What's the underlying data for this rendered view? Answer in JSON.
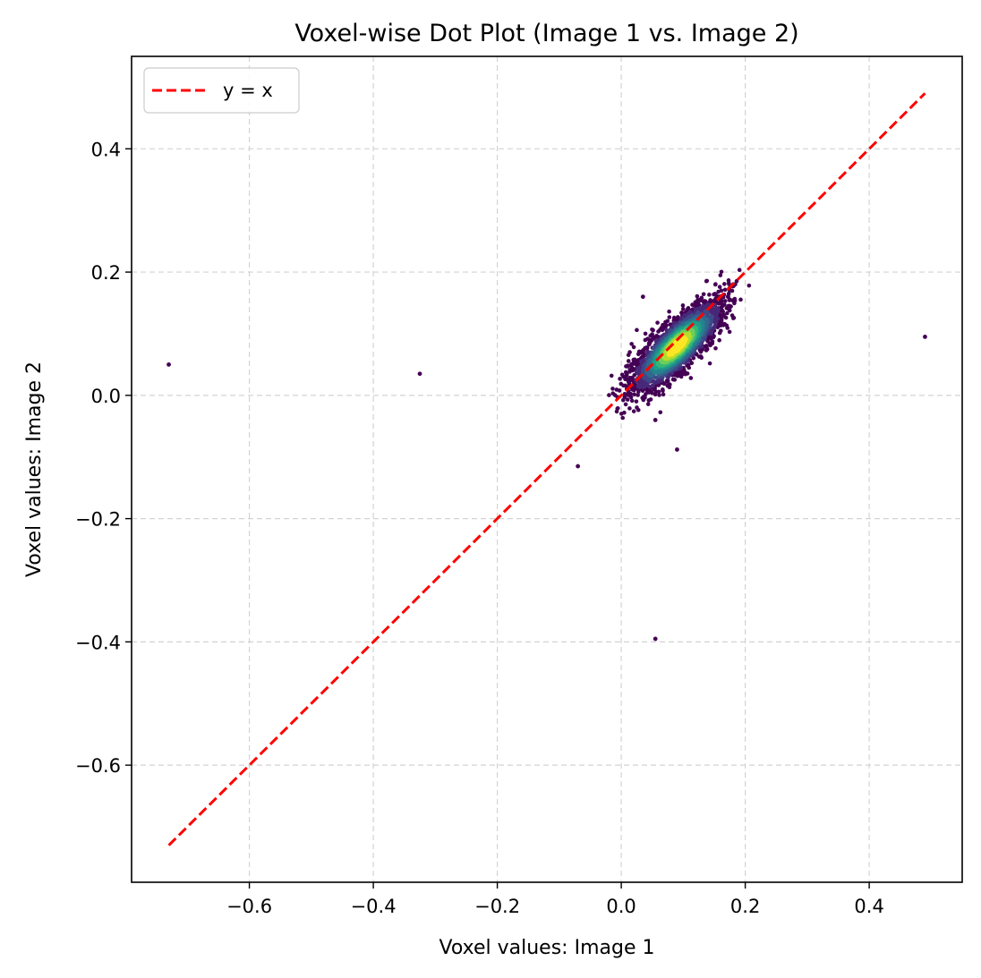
{
  "chart_data": {
    "type": "scatter",
    "title": "Voxel-wise Dot Plot (Image 1 vs. Image 2)",
    "xlabel": "Voxel values: Image 1",
    "ylabel": "Voxel values: Image 2",
    "xlim": [
      -0.79,
      0.55
    ],
    "ylim": [
      -0.79,
      0.55
    ],
    "xticks": [
      -0.6,
      -0.4,
      -0.2,
      0.0,
      0.2,
      0.4
    ],
    "yticks": [
      -0.6,
      -0.4,
      -0.2,
      0.0,
      0.2,
      0.4
    ],
    "xtick_labels": [
      "−0.6",
      "−0.4",
      "−0.2",
      "0.0",
      "0.2",
      "0.4"
    ],
    "ytick_labels": [
      "−0.6",
      "−0.4",
      "−0.2",
      "0.0",
      "0.2",
      "0.4"
    ],
    "grid": true,
    "legend": {
      "position": "top-left",
      "entries": [
        "y = x"
      ]
    },
    "reference_line": {
      "name": "y = x",
      "from": [
        -0.73,
        -0.73
      ],
      "to": [
        0.49,
        0.49
      ],
      "color": "#ff0000",
      "style": "dashed"
    },
    "colormap": "viridis",
    "density_cluster": {
      "center": [
        0.09,
        0.08
      ],
      "x_range": [
        -0.02,
        0.22
      ],
      "y_range": [
        -0.04,
        0.22
      ],
      "correlation": "strong positive, along y = x"
    },
    "outliers": [
      {
        "x": -0.73,
        "y": 0.05
      },
      {
        "x": -0.325,
        "y": 0.035
      },
      {
        "x": -0.07,
        "y": -0.115
      },
      {
        "x": 0.055,
        "y": -0.395
      },
      {
        "x": 0.09,
        "y": -0.088
      },
      {
        "x": 0.49,
        "y": 0.095
      },
      {
        "x": 0.035,
        "y": 0.16
      },
      {
        "x": 0.055,
        "y": -0.04
      }
    ]
  },
  "colors": {
    "reference_line": "#ff0000",
    "grid": "#d3d3d3",
    "low_density": "#440154",
    "high_density": "#fde725"
  }
}
